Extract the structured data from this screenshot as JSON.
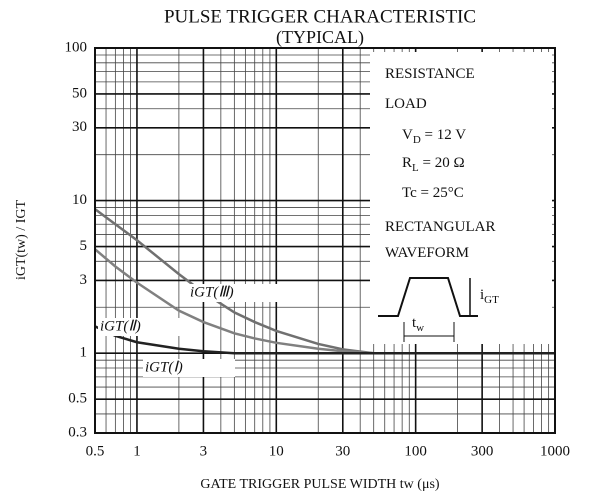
{
  "chart_data": {
    "type": "line",
    "title": "PULSE TRIGGER CHARACTERISTIC",
    "subtitle": "(TYPICAL)",
    "x_label": "GATE TRIGGER PULSE WIDTH  tw  (μs)",
    "y_label": "iGT(tw) / IGT",
    "log_x": true,
    "log_y": true,
    "grid": true,
    "x": [
      0.5,
      0.7,
      1,
      2,
      3,
      5,
      7,
      10,
      20,
      30,
      50,
      100,
      300,
      1000
    ],
    "series": [
      {
        "name": "iGT(Ⅲ)",
        "color": "#707070",
        "values": [
          8.8,
          7,
          5.5,
          3.3,
          2.5,
          1.85,
          1.6,
          1.4,
          1.15,
          1.06,
          1.0,
          1,
          1,
          1
        ]
      },
      {
        "name": "iGT(Ⅱ)",
        "color": "#808080",
        "values": [
          4.8,
          3.7,
          2.9,
          1.9,
          1.6,
          1.35,
          1.25,
          1.17,
          1.07,
          1.03,
          1.0,
          1,
          1,
          1
        ]
      },
      {
        "name": "iGT(Ⅰ)",
        "color": "#222222",
        "values": [
          1.5,
          1.3,
          1.18,
          1.07,
          1.03,
          1.0,
          1,
          1,
          1,
          1,
          1,
          1,
          1,
          1
        ]
      }
    ],
    "xlim": [
      0.5,
      1000
    ],
    "ylim": [
      0.3,
      100
    ],
    "xticks": [
      0.5,
      1,
      3,
      10,
      30,
      100,
      300,
      1000
    ],
    "yticks": [
      0.3,
      0.5,
      1,
      3,
      5,
      10,
      30,
      50,
      100
    ],
    "xminorticks": [
      0.6,
      0.7,
      0.8,
      0.9,
      2,
      4,
      5,
      6,
      7,
      8,
      9,
      20,
      40,
      50,
      60,
      70,
      80,
      90,
      200,
      400,
      500,
      600,
      700,
      800,
      900
    ],
    "yminorticks": [
      0.4,
      0.6,
      0.7,
      0.8,
      0.9,
      2,
      4,
      6,
      7,
      8,
      9,
      20,
      40,
      60,
      70,
      80,
      90
    ],
    "annotations": [
      [
        {
          "text": "RESISTANCE"
        }
      ],
      [
        {
          "text": "LOAD"
        }
      ],
      [
        {
          "text": "V"
        },
        {
          "text": "D",
          "sub": true
        },
        {
          "text": " = 12 V"
        }
      ],
      [
        {
          "text": "R"
        },
        {
          "text": "L",
          "sub": true
        },
        {
          "text": " = 20 Ω"
        }
      ],
      [
        {
          "text": "Tc = 25°C"
        }
      ],
      [
        {
          "text": "RECTANGULAR"
        }
      ],
      [
        {
          "text": "WAVEFORM"
        }
      ],
      [
        {
          "text": "i"
        },
        {
          "text": "GT",
          "sub": true
        }
      ],
      [
        {
          "text": "t"
        },
        {
          "text": "w",
          "sub": true
        }
      ]
    ]
  }
}
